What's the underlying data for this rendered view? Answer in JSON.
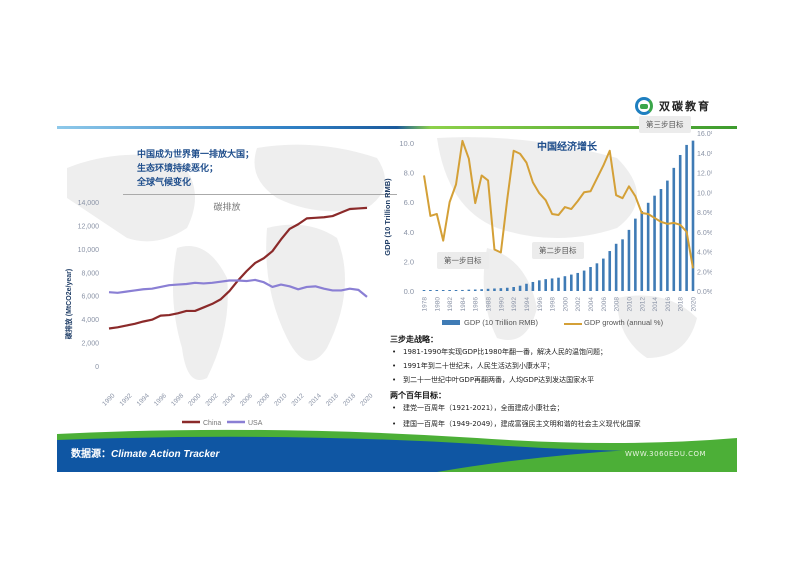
{
  "brand": {
    "name": "双碳教育",
    "url": "WWW.3060EDU.COM"
  },
  "left_panel": {
    "notes": [
      "中国成为世界第一排放大国；",
      "生态环境持续恶化；",
      "全球气候变化"
    ],
    "chart_title": "碳排放",
    "ylabel": "碳排放 (MtCO2e/year)",
    "legend": {
      "china": "China",
      "usa": "USA"
    }
  },
  "right_panel": {
    "chart_title": "中国经济增长",
    "ylabel_left": "GDP (10 Trillion RMB)",
    "legend": {
      "gdp": "GDP (10 Trillion RMB)",
      "growth": "GDP growth (annual %)"
    },
    "step_labels": {
      "step1": "第一步目标",
      "step2": "第二步目标",
      "step3": "第三步目标"
    }
  },
  "strategy": {
    "title": "三步走战略：",
    "items": [
      "1981-1990年实现GDP比1980年翻一番，解决人民的温饱问题；",
      "1991年到二十世纪末，人民生活达到小康水平；",
      "到二十一世纪中叶GDP再翻两番，人均GDP达到发达国家水平"
    ]
  },
  "centenary": {
    "title": "两个百年目标：",
    "items": [
      "建党一百周年（1921-2021），全面建成小康社会；",
      "建国一百周年（1949-2049），建成富强民主文明和谐的社会主义现代化国家"
    ]
  },
  "footer": {
    "source_prefix": "数据源：",
    "source_name": "Climate Action Tracker"
  },
  "colors": {
    "china": "#8b2a2a",
    "usa": "#8a7fd4",
    "gdp_bar": "#3f7bb5",
    "growth_line": "#d4a037",
    "banner_blue": "#0f56a3",
    "banner_green": "#4caf37",
    "note_text": "#1f4e8c"
  },
  "chart_data": [
    {
      "type": "line",
      "title": "碳排放",
      "xlabel": "",
      "ylabel": "碳排放 (MtCO2e/year)",
      "ylim": [
        0,
        14000
      ],
      "yticks": [
        "0",
        "2,000",
        "4,000",
        "6,000",
        "8,000",
        "10,000",
        "12,000",
        "14,000"
      ],
      "x": [
        1990,
        1991,
        1992,
        1993,
        1994,
        1995,
        1996,
        1997,
        1998,
        1999,
        2000,
        2001,
        2002,
        2003,
        2004,
        2005,
        2006,
        2007,
        2008,
        2009,
        2010,
        2011,
        2012,
        2013,
        2014,
        2015,
        2016,
        2017,
        2018,
        2019,
        2020
      ],
      "xtick_labels": [
        "1990",
        "1992",
        "1994",
        "1996",
        "1998",
        "2000",
        "2002",
        "2004",
        "2006",
        "2008",
        "2010",
        "2012",
        "2014",
        "2016",
        "2018",
        "2020"
      ],
      "series": [
        {
          "name": "China",
          "values": [
            3200,
            3300,
            3450,
            3600,
            3800,
            3950,
            4300,
            4350,
            4500,
            4700,
            4700,
            5000,
            5300,
            5700,
            6400,
            7300,
            8100,
            8800,
            9200,
            9800,
            10800,
            11700,
            12100,
            12600,
            12650,
            12700,
            12800,
            13100,
            13400,
            13450,
            13500
          ]
        },
        {
          "name": "USA",
          "values": [
            6300,
            6250,
            6350,
            6450,
            6550,
            6600,
            6750,
            6900,
            6950,
            7000,
            7100,
            7050,
            7100,
            7200,
            7300,
            7300,
            7250,
            7350,
            7150,
            6750,
            6950,
            6800,
            6550,
            6750,
            6800,
            6600,
            6450,
            6450,
            6600,
            6500,
            5900
          ]
        }
      ],
      "legend_position": "bottom"
    },
    {
      "type": "bar+line",
      "title": "中国经济增长",
      "ylabel_left": "GDP (10 Trillion RMB)",
      "ylim_left": [
        0,
        10
      ],
      "yticks_left": [
        "0.0",
        "2.0",
        "4.0",
        "6.0",
        "8.0",
        "10.0"
      ],
      "ylim_right": [
        0,
        16
      ],
      "yticks_right": [
        "0.0%",
        "2.0%",
        "4.0%",
        "6.0%",
        "8.0%",
        "10.0%",
        "12.0%",
        "14.0%",
        "16.0%"
      ],
      "x": [
        1978,
        1979,
        1980,
        1981,
        1982,
        1983,
        1984,
        1985,
        1986,
        1987,
        1988,
        1989,
        1990,
        1991,
        1992,
        1993,
        1994,
        1995,
        1996,
        1997,
        1998,
        1999,
        2000,
        2001,
        2002,
        2003,
        2004,
        2005,
        2006,
        2007,
        2008,
        2009,
        2010,
        2011,
        2012,
        2013,
        2014,
        2015,
        2016,
        2017,
        2018,
        2019,
        2020
      ],
      "xtick_labels": [
        "1978",
        "1980",
        "1982",
        "1984",
        "1986",
        "1988",
        "1990",
        "1992",
        "1994",
        "1996",
        "1998",
        "2000",
        "2002",
        "2004",
        "2006",
        "2008",
        "2010",
        "2012",
        "2014",
        "2016",
        "2018",
        "2020"
      ],
      "series": [
        {
          "name": "GDP (10 Trillion RMB)",
          "type": "bar",
          "axis": "left",
          "values": [
            0.04,
            0.04,
            0.05,
            0.05,
            0.05,
            0.06,
            0.07,
            0.09,
            0.1,
            0.12,
            0.15,
            0.17,
            0.19,
            0.22,
            0.27,
            0.36,
            0.49,
            0.61,
            0.72,
            0.8,
            0.85,
            0.9,
            1.0,
            1.11,
            1.22,
            1.38,
            1.62,
            1.87,
            2.19,
            2.7,
            3.19,
            3.49,
            4.13,
            4.89,
            5.4,
            5.96,
            6.44,
            6.89,
            7.46,
            8.32,
            9.19,
            9.87,
            10.16
          ]
        },
        {
          "name": "GDP growth (annual %)",
          "type": "line",
          "axis": "right",
          "values": [
            11.7,
            7.6,
            7.8,
            5.1,
            9.0,
            10.8,
            15.2,
            13.4,
            8.9,
            11.7,
            11.2,
            4.2,
            3.9,
            9.3,
            14.2,
            13.9,
            13.0,
            11.0,
            9.9,
            9.2,
            7.8,
            7.7,
            8.5,
            8.3,
            9.1,
            10.0,
            10.1,
            11.4,
            12.7,
            14.2,
            9.7,
            9.4,
            10.6,
            9.6,
            7.9,
            7.8,
            7.4,
            7.0,
            6.8,
            6.9,
            6.7,
            6.0,
            2.3
          ]
        }
      ],
      "legend_position": "bottom"
    }
  ]
}
